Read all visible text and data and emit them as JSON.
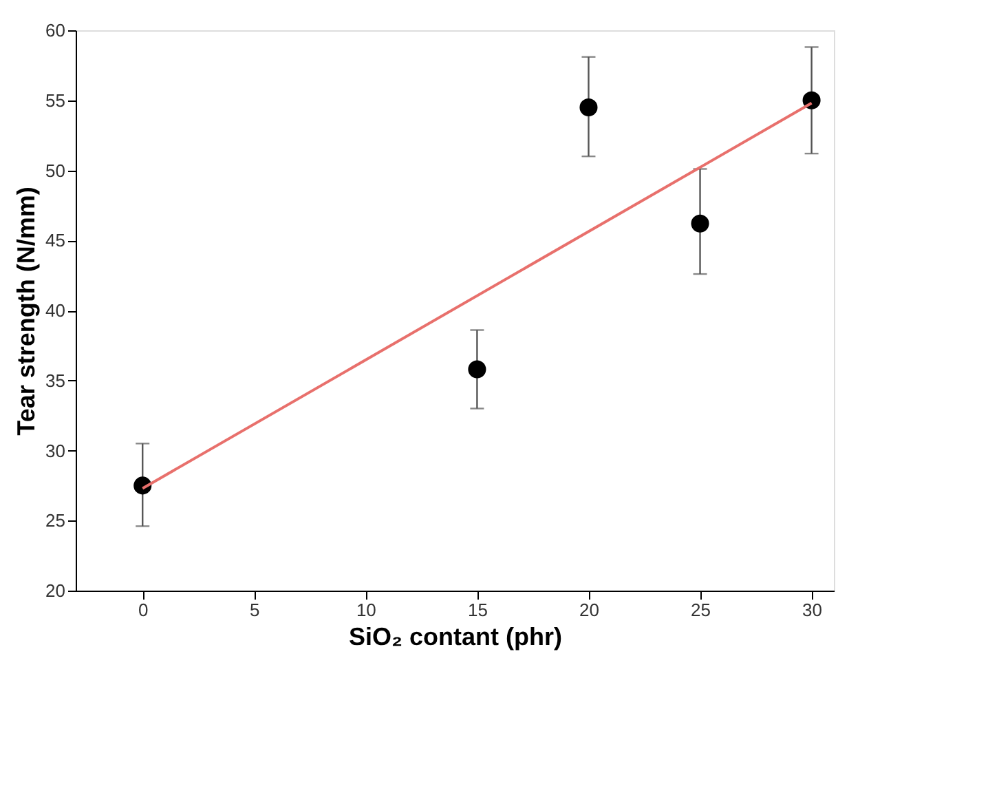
{
  "chart_data": {
    "type": "scatter",
    "xlabel": "SiO₂ contant (phr)",
    "ylabel": "Tear strength (N/mm)",
    "xlim": [
      -3,
      31
    ],
    "xticks": [
      0,
      5,
      10,
      15,
      20,
      25,
      30
    ],
    "ylim": [
      20,
      60
    ],
    "yticks": [
      20,
      25,
      30,
      35,
      40,
      45,
      50,
      55,
      60
    ],
    "grid": false,
    "series": [
      {
        "color": "#000000",
        "marker": "circle",
        "x": [
          0,
          15,
          20,
          25,
          30
        ],
        "values": [
          27.5,
          35.8,
          54.5,
          46.2,
          55.0
        ],
        "errors": [
          [
            24.6,
            30.5
          ],
          [
            33.0,
            38.6
          ],
          [
            51.0,
            58.1
          ],
          [
            42.6,
            50.1
          ],
          [
            51.2,
            58.8
          ]
        ]
      },
      {
        "type": "line",
        "color": "#e8706c",
        "line_style": "solid",
        "x": [
          0,
          30
        ],
        "values": [
          27.3,
          54.8
        ]
      }
    ]
  }
}
